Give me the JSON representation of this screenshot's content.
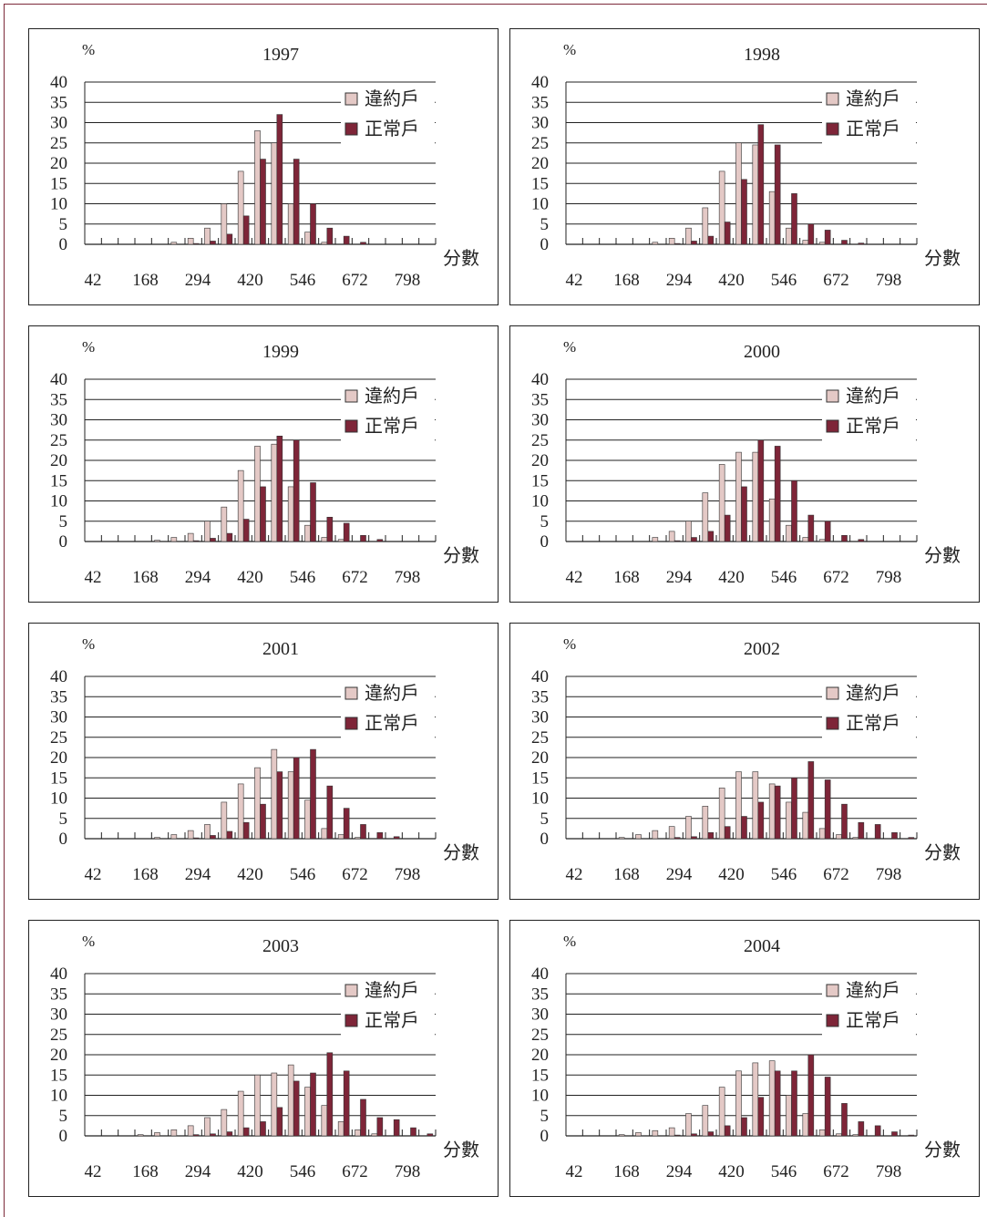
{
  "colors": {
    "default": "#e4c9c6",
    "normal": "#7e2538",
    "outline": "#333333"
  },
  "legend": {
    "default_label": "違約戶",
    "normal_label": "正常戶"
  },
  "axis": {
    "y_unit": "%",
    "x_unit": "分數",
    "y_ticks": [
      "0",
      "5",
      "10",
      "15",
      "20",
      "25",
      "30",
      "35",
      "40"
    ],
    "x_tick_labels": [
      "42",
      "168",
      "294",
      "420",
      "546",
      "672",
      "798"
    ]
  },
  "chart_data": [
    {
      "type": "bar",
      "title": "1997",
      "ylim": [
        0,
        40
      ],
      "xlabel": "分數",
      "ylabel": "%",
      "series": [
        {
          "name": "違約戶",
          "values": [
            0,
            0,
            0,
            0,
            0,
            0.5,
            1.5,
            4,
            10,
            18,
            28,
            25,
            10,
            3,
            0.5,
            0,
            0,
            0,
            0,
            0,
            0
          ]
        },
        {
          "name": "正常戶",
          "values": [
            0,
            0,
            0,
            0,
            0,
            0,
            0.2,
            0.8,
            2.5,
            7,
            21,
            32,
            21,
            10,
            4,
            2,
            0.5,
            0,
            0,
            0,
            0
          ]
        }
      ]
    },
    {
      "type": "bar",
      "title": "1998",
      "ylim": [
        0,
        40
      ],
      "xlabel": "分數",
      "ylabel": "%",
      "series": [
        {
          "name": "違約戶",
          "values": [
            0,
            0,
            0,
            0,
            0,
            0.5,
            1.5,
            4,
            9,
            18,
            25,
            24.5,
            13,
            4,
            1,
            0.5,
            0,
            0,
            0,
            0,
            0
          ]
        },
        {
          "name": "正常戶",
          "values": [
            0,
            0,
            0,
            0,
            0,
            0,
            0.2,
            0.8,
            2,
            5.5,
            16,
            29.5,
            24.5,
            12.5,
            5,
            3.5,
            1,
            0.3,
            0,
            0,
            0
          ]
        }
      ]
    },
    {
      "type": "bar",
      "title": "1999",
      "ylim": [
        0,
        40
      ],
      "xlabel": "分數",
      "ylabel": "%",
      "series": [
        {
          "name": "違約戶",
          "values": [
            0,
            0,
            0,
            0,
            0.3,
            1,
            2,
            5,
            8.5,
            17.5,
            23.5,
            24,
            13.5,
            4,
            1,
            0.5,
            0,
            0,
            0,
            0,
            0
          ]
        },
        {
          "name": "正常戶",
          "values": [
            0,
            0,
            0,
            0,
            0,
            0,
            0.2,
            0.8,
            2,
            5.5,
            13.5,
            26,
            25,
            14.5,
            6,
            4.5,
            1.5,
            0.5,
            0,
            0,
            0
          ]
        }
      ]
    },
    {
      "type": "bar",
      "title": "2000",
      "ylim": [
        0,
        40
      ],
      "xlabel": "分數",
      "ylabel": "%",
      "series": [
        {
          "name": "違約戶",
          "values": [
            0,
            0,
            0,
            0,
            0,
            1,
            2.5,
            5,
            12,
            19,
            22,
            22,
            10.5,
            4,
            1,
            0.5,
            0,
            0,
            0,
            0,
            0
          ]
        },
        {
          "name": "正常戶",
          "values": [
            0,
            0,
            0,
            0,
            0,
            0,
            0.2,
            1,
            2.5,
            6.5,
            13.5,
            25,
            23.5,
            15,
            6.5,
            5,
            1.5,
            0.5,
            0,
            0,
            0
          ]
        }
      ]
    },
    {
      "type": "bar",
      "title": "2001",
      "ylim": [
        0,
        40
      ],
      "xlabel": "分數",
      "ylabel": "%",
      "series": [
        {
          "name": "違約戶",
          "values": [
            0,
            0,
            0,
            0,
            0.3,
            1,
            2,
            3.5,
            9,
            13.5,
            17.5,
            22,
            16.5,
            9.5,
            2.5,
            1,
            0.3,
            0,
            0,
            0,
            0
          ]
        },
        {
          "name": "正常戶",
          "values": [
            0,
            0,
            0,
            0,
            0,
            0,
            0.2,
            0.8,
            1.8,
            4,
            8.5,
            16.5,
            20,
            22,
            13,
            7.5,
            3.5,
            1.5,
            0.5,
            0,
            0
          ]
        }
      ]
    },
    {
      "type": "bar",
      "title": "2002",
      "ylim": [
        0,
        40
      ],
      "xlabel": "分數",
      "ylabel": "%",
      "series": [
        {
          "name": "違約戶",
          "values": [
            0,
            0,
            0,
            0.3,
            1,
            2,
            3,
            5.5,
            8,
            12.5,
            16.5,
            16.5,
            13.5,
            9,
            6.5,
            2.5,
            1,
            0.3,
            0,
            0,
            0
          ]
        },
        {
          "name": "正常戶",
          "values": [
            0,
            0,
            0,
            0,
            0,
            0,
            0.3,
            0.5,
            1.5,
            3,
            5.5,
            9,
            13,
            15,
            19,
            14.5,
            8.5,
            4,
            3.5,
            1.5,
            0.3
          ]
        }
      ]
    },
    {
      "type": "bar",
      "title": "2003",
      "ylim": [
        0,
        40
      ],
      "xlabel": "分數",
      "ylabel": "%",
      "series": [
        {
          "name": "違約戶",
          "values": [
            0,
            0,
            0,
            0.3,
            0.8,
            1.5,
            2.5,
            4.5,
            6.5,
            11,
            15,
            15.5,
            17.5,
            12,
            7.5,
            3.5,
            1.5,
            0.5,
            0,
            0,
            0
          ]
        },
        {
          "name": "正常戶",
          "values": [
            0,
            0,
            0,
            0,
            0,
            0,
            0.3,
            0.5,
            1,
            2,
            3.5,
            7,
            13.5,
            15.5,
            20.5,
            16,
            9,
            4.5,
            4,
            2,
            0.5
          ]
        }
      ]
    },
    {
      "type": "bar",
      "title": "2004",
      "ylim": [
        0,
        40
      ],
      "xlabel": "分數",
      "ylabel": "%",
      "series": [
        {
          "name": "違約戶",
          "values": [
            0,
            0,
            0,
            0.3,
            0.8,
            1.3,
            2,
            5.5,
            7.5,
            12,
            16,
            18,
            18.5,
            10,
            5.5,
            1.5,
            0.5,
            0.3,
            0,
            0,
            0
          ]
        },
        {
          "name": "正常戶",
          "values": [
            0,
            0,
            0,
            0,
            0,
            0,
            0.2,
            0.5,
            1,
            2.5,
            4.5,
            9.5,
            16,
            16,
            20,
            14.5,
            8,
            3.5,
            2.5,
            1,
            0.2
          ]
        }
      ]
    }
  ]
}
